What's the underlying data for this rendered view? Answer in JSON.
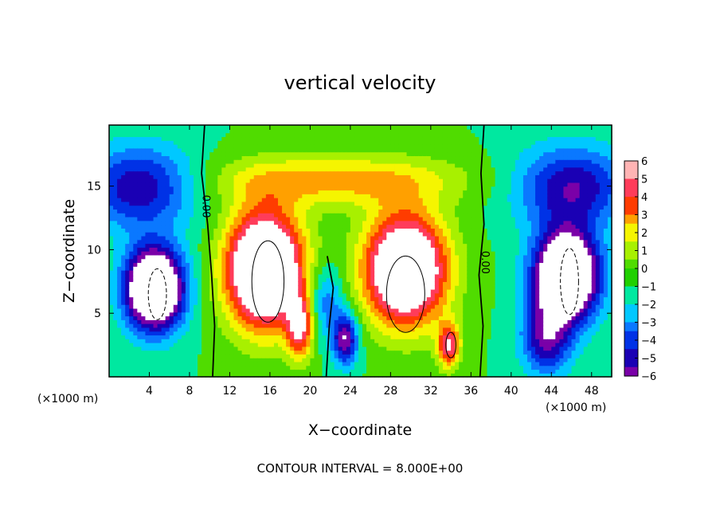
{
  "chart_data": {
    "type": "heatmap",
    "title": "vertical velocity",
    "xlabel": "X−coordinate",
    "ylabel": "Z−coordinate",
    "x_unit_label": "(×1000 m)",
    "xlim": [
      0,
      50
    ],
    "ylim": [
      0,
      19.8
    ],
    "x_ticks": [
      4,
      8,
      12,
      16,
      20,
      24,
      28,
      32,
      36,
      40,
      44,
      48
    ],
    "y_ticks": [
      5,
      10,
      15
    ],
    "x_tick_labels": [
      "4",
      "8",
      "12",
      "16",
      "20",
      "24",
      "28",
      "32",
      "36",
      "40",
      "44",
      "48"
    ],
    "y_tick_labels": [
      "5",
      "10",
      "15"
    ],
    "colorbar": {
      "min": -6,
      "max": 6,
      "tick_labels": [
        "6",
        "5",
        "4",
        "3",
        "2",
        "1",
        "0",
        "−1",
        "−2",
        "−3",
        "−4",
        "−5",
        "−6"
      ]
    },
    "colors": {
      "lt6": "#7a00a8",
      "lt5": "#1a00b4",
      "lt4": "#0032e6",
      "lt3": "#0a78ff",
      "lt2": "#00c8ff",
      "lt1": "#00e8a0",
      "lt0": "#20d000",
      "gt0": "#50dc00",
      "gt1": "#a8f000",
      "gt2": "#f5f500",
      "gt3": "#ffa000",
      "gt4": "#ff3c00",
      "gt5": "#ff3c5a",
      "gt6": "#ffb4b4",
      "saturated": "#ffffff"
    },
    "contour_label": "0.00",
    "contour_interval_label": "CONTOUR INTERVAL = 8.000E+00",
    "features": [
      {
        "kind": "updraft",
        "x": 15.5,
        "z": 7.5,
        "peak": 12
      },
      {
        "kind": "updraft",
        "x": 29.5,
        "z": 7.5,
        "peak": 12
      },
      {
        "kind": "updraft",
        "x": 19,
        "z": 4,
        "peak": 6
      },
      {
        "kind": "updraft",
        "x": 33.8,
        "z": 2.5,
        "peak": 6
      },
      {
        "kind": "downdraft",
        "x": 4.5,
        "z": 7,
        "peak": -12
      },
      {
        "kind": "downdraft",
        "x": 45.5,
        "z": 8,
        "peak": -12
      },
      {
        "kind": "downdraft",
        "x": 23.5,
        "z": 3,
        "peak": -6
      },
      {
        "kind": "downdraft",
        "x": 43.5,
        "z": 3,
        "peak": -5
      }
    ]
  }
}
